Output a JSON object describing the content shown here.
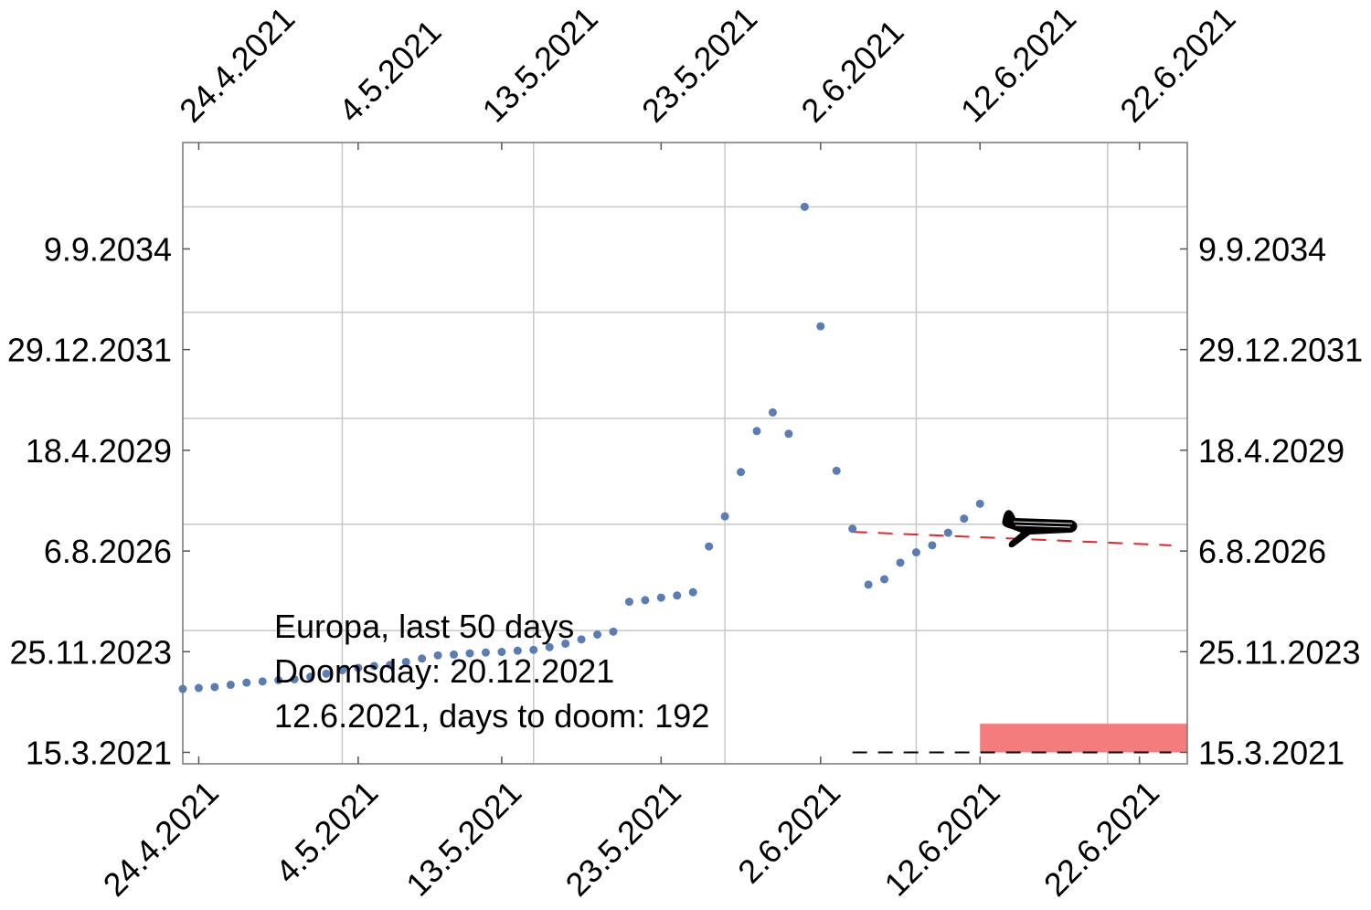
{
  "chart_data": {
    "type": "scatter",
    "annotations": [
      "Europa, last 50 days",
      "Doomsday: 20.12.2021",
      "12.6.2021, days to doom: 192"
    ],
    "x_ticks": [
      "24.4.2021",
      "4.5.2021",
      "13.5.2021",
      "23.5.2021",
      "2.6.2021",
      "12.6.2021",
      "22.6.2021"
    ],
    "y_ticks": [
      "15.3.2021",
      "25.11.2023",
      "6.8.2026",
      "18.4.2029",
      "29.12.2031",
      "9.9.2034"
    ],
    "xlim": [
      "2021-04-23",
      "2021-06-25"
    ],
    "ylim": [
      "2020-11-23",
      "2037-07-16"
    ],
    "grid": true,
    "x_grid_dates": [
      "2021-05-03",
      "2021-05-15",
      "2021-05-27",
      "2021-06-08",
      "2021-06-20"
    ],
    "y_grid_dates": [
      "2024-06-19",
      "2027-04-24",
      "2030-02-23",
      "2032-12-27",
      "2035-10-26"
    ],
    "series": [
      {
        "marker_color": "#5b7db5",
        "points": [
          [
            "2021-04-23",
            "2022-11-26"
          ],
          [
            "2021-04-24",
            "2022-12-05"
          ],
          [
            "2021-04-25",
            "2022-12-14"
          ],
          [
            "2021-04-26",
            "2023-01-05"
          ],
          [
            "2021-04-27",
            "2023-01-26"
          ],
          [
            "2021-04-28",
            "2023-02-07"
          ],
          [
            "2021-04-29",
            "2023-02-19"
          ],
          [
            "2021-04-30",
            "2023-02-28"
          ],
          [
            "2021-05-01",
            "2023-03-24"
          ],
          [
            "2021-05-02",
            "2023-04-24"
          ],
          [
            "2021-05-03",
            "2023-05-28"
          ],
          [
            "2021-05-04",
            "2023-06-20"
          ],
          [
            "2021-05-05",
            "2023-07-08"
          ],
          [
            "2021-05-06",
            "2023-07-19"
          ],
          [
            "2021-05-07",
            "2023-08-17"
          ],
          [
            "2021-05-08",
            "2023-09-19"
          ],
          [
            "2021-05-09",
            "2023-10-20"
          ],
          [
            "2021-05-10",
            "2023-10-28"
          ],
          [
            "2021-05-11",
            "2023-11-09"
          ],
          [
            "2021-05-12",
            "2023-11-17"
          ],
          [
            "2021-05-13",
            "2023-11-23"
          ],
          [
            "2021-05-14",
            "2023-12-05"
          ],
          [
            "2021-05-15",
            "2023-12-13"
          ],
          [
            "2021-05-16",
            "2024-01-08"
          ],
          [
            "2021-05-17",
            "2024-02-12"
          ],
          [
            "2021-05-18",
            "2024-03-24"
          ],
          [
            "2021-05-19",
            "2024-05-11"
          ],
          [
            "2021-05-20",
            "2024-06-08"
          ],
          [
            "2021-05-21",
            "2025-03-28"
          ],
          [
            "2021-05-22",
            "2025-04-12"
          ],
          [
            "2021-05-23",
            "2025-05-07"
          ],
          [
            "2021-05-24",
            "2025-05-28"
          ],
          [
            "2021-05-25",
            "2025-06-29"
          ],
          [
            "2021-05-26",
            "2026-09-20"
          ],
          [
            "2021-05-27",
            "2027-07-11"
          ],
          [
            "2021-05-28",
            "2028-09-17"
          ],
          [
            "2021-05-29",
            "2029-10-23"
          ],
          [
            "2021-05-30",
            "2030-04-23"
          ],
          [
            "2021-05-31",
            "2029-09-26"
          ],
          [
            "2021-06-01",
            "2035-10-26"
          ],
          [
            "2021-06-02",
            "2032-08-13"
          ],
          [
            "2021-06-03",
            "2028-09-29"
          ],
          [
            "2021-06-04",
            "2027-03-12"
          ],
          [
            "2021-06-05",
            "2025-09-11"
          ],
          [
            "2021-06-06",
            "2025-11-03"
          ],
          [
            "2021-06-07",
            "2026-04-14"
          ],
          [
            "2021-06-08",
            "2026-07-24"
          ],
          [
            "2021-06-09",
            "2026-10-01"
          ],
          [
            "2021-06-10",
            "2027-02-01"
          ],
          [
            "2021-06-11",
            "2027-06-19"
          ],
          [
            "2021-06-12",
            "2027-11-12"
          ]
        ]
      }
    ],
    "trend_line": {
      "color": "#e8232a",
      "style": "dashed",
      "from": [
        "2021-06-04",
        "2027-02-10"
      ],
      "to": [
        "2021-06-24",
        "2026-10-01"
      ]
    },
    "baseline": {
      "color": "#000000",
      "style": "dashed",
      "from": [
        "2021-06-04",
        "2021-03-15"
      ],
      "to": [
        "2021-06-24",
        "2021-03-15"
      ]
    },
    "band": {
      "color": "#f47c7c",
      "from_x": "2021-06-12",
      "to_x": "2021-06-25",
      "y_low": "2021-03-15",
      "y_high": "2021-12-20"
    },
    "airplane_icon": "airplane-icon"
  }
}
